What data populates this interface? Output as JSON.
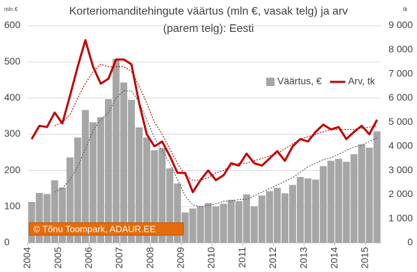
{
  "chart_data": {
    "type": "bar",
    "title": "Korteriomanditehingute väärtus (mln €, vasak telg) ja arv",
    "subtitle": "(parem telg): Eesti",
    "y_unit": "mln €",
    "y2_unit": "tk",
    "annotation": "© Tõnu Toompark, ADAUR.EE",
    "categories": [
      "2004",
      null,
      null,
      null,
      "2005",
      null,
      null,
      null,
      "2006",
      null,
      null,
      null,
      "2007",
      null,
      null,
      null,
      "2008",
      null,
      null,
      null,
      "2009",
      null,
      null,
      null,
      "2010",
      null,
      null,
      null,
      "2011",
      null,
      null,
      null,
      "2012",
      null,
      null,
      null,
      "2013",
      null,
      null,
      null,
      "2014",
      null,
      null,
      null,
      "2015",
      null
    ],
    "series": [
      {
        "name": "Väärtus, €",
        "type": "bar",
        "color": "#a6a6a6",
        "values": [
          113,
          138,
          135,
          173,
          153,
          236,
          291,
          367,
          333,
          347,
          397,
          508,
          443,
          395,
          319,
          291,
          256,
          262,
          206,
          164,
          84,
          95,
          101,
          110,
          101,
          108,
          119,
          115,
          134,
          101,
          131,
          143,
          152,
          137,
          160,
          182,
          178,
          175,
          212,
          227,
          232,
          224,
          245,
          272,
          263,
          308
        ]
      },
      {
        "name": "Arv, tk",
        "type": "line",
        "axis": "y2",
        "color": "#c00000",
        "values": [
          4300,
          4850,
          4800,
          5400,
          4950,
          6100,
          7300,
          8400,
          7300,
          6600,
          6800,
          7600,
          7600,
          7400,
          5800,
          4500,
          4000,
          4200,
          3600,
          2900,
          2900,
          2100,
          2600,
          3000,
          2600,
          2800,
          3300,
          3200,
          3700,
          3300,
          3200,
          3500,
          3800,
          3400,
          4000,
          4300,
          4200,
          4600,
          4900,
          4700,
          4800,
          4300,
          4600,
          4850,
          4500,
          5100
        ]
      },
      {
        "type": "line",
        "dash": "2 2",
        "color": "#595959",
        "values": [
          null,
          null,
          null,
          140,
          150,
          175,
          210,
          260,
          310,
          340,
          360,
          400,
          420,
          420,
          390,
          340,
          290,
          255,
          220,
          175,
          130,
          105,
          100,
          103,
          108,
          115,
          115,
          120,
          120,
          130,
          140,
          150,
          160,
          170,
          180,
          195,
          210,
          220,
          230,
          235,
          245,
          255,
          265,
          270,
          280,
          290
        ]
      },
      {
        "type": "line",
        "axis": "y2",
        "dash": "2 2",
        "color": "#c00000",
        "values": [
          null,
          null,
          null,
          4850,
          5000,
          5300,
          6000,
          6600,
          7100,
          7400,
          7300,
          7300,
          7300,
          7100,
          6500,
          5800,
          5000,
          4500,
          3900,
          3300,
          2800,
          2600,
          2600,
          2700,
          2900,
          3000,
          3200,
          3300,
          3300,
          3400,
          3500,
          3600,
          3700,
          3900,
          4100,
          4300,
          4400,
          4500,
          4600,
          4700,
          4700,
          4700,
          4700,
          4750,
          4800,
          4850
        ]
      }
    ],
    "ylim": [
      0,
      600
    ],
    "yticks": [
      0,
      100,
      200,
      300,
      400,
      500,
      600
    ],
    "y2lim": [
      0,
      9000
    ],
    "y2ticks": [
      0,
      {
        "value": 1000,
        "label": "1 000"
      },
      {
        "value": 2000,
        "label": "2 000"
      },
      {
        "value": 3000,
        "label": "3 000"
      },
      {
        "value": 4000,
        "label": "4 000"
      },
      {
        "value": 5000,
        "label": "5 000"
      },
      {
        "value": 6000,
        "label": "6 000"
      },
      {
        "value": 7000,
        "label": "7 000"
      },
      {
        "value": 8000,
        "label": "8 000"
      },
      {
        "value": 9000,
        "label": "9 000"
      }
    ],
    "grid": true
  }
}
